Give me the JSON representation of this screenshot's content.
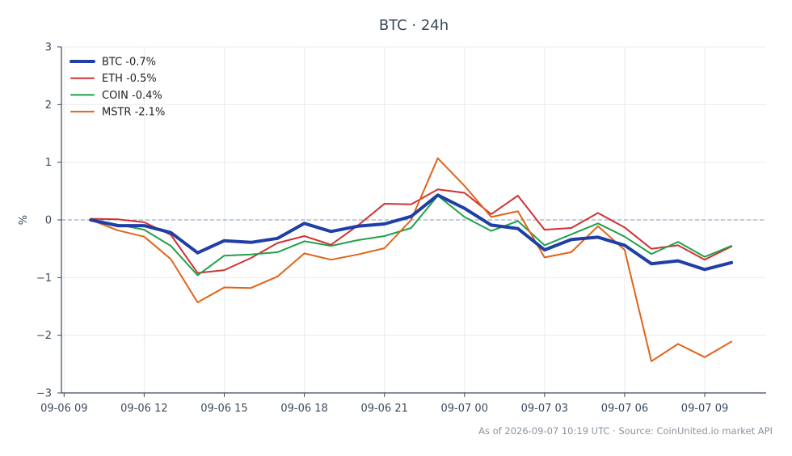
{
  "chart_data": {
    "type": "line",
    "title": "BTC · 24h",
    "ylabel": "%",
    "xlabel": "",
    "ylim": [
      -3,
      3
    ],
    "yticks": [
      3,
      2,
      1,
      0,
      -1,
      -2,
      -3
    ],
    "ytick_labels": [
      "3",
      "2",
      "1",
      "0",
      "−1",
      "−2",
      "−3"
    ],
    "xticks": [
      {
        "label": "09-06 09",
        "hours": 9
      },
      {
        "label": "09-06 12",
        "hours": 12
      },
      {
        "label": "09-06 15",
        "hours": 15
      },
      {
        "label": "09-06 18",
        "hours": 18
      },
      {
        "label": "09-06 21",
        "hours": 21
      },
      {
        "label": "09-07 00",
        "hours": 24
      },
      {
        "label": "09-07 03",
        "hours": 27
      },
      {
        "label": "09-07 06",
        "hours": 30
      },
      {
        "label": "09-07 09",
        "hours": 33
      }
    ],
    "x_hours": [
      10,
      11,
      12,
      13,
      14,
      15,
      16,
      17,
      18,
      19,
      20,
      21,
      22,
      23,
      24,
      25,
      26,
      27,
      28,
      29,
      30,
      31,
      32,
      33,
      34
    ],
    "grid": true,
    "zero_line": true,
    "legend_position": "top-left",
    "series": [
      {
        "name": "BTC -0.7%",
        "color": "#1f3fa6",
        "width": 4,
        "values": [
          0.0,
          -0.1,
          -0.1,
          -0.22,
          -0.57,
          -0.36,
          -0.39,
          -0.32,
          -0.06,
          -0.2,
          -0.11,
          -0.07,
          0.06,
          0.43,
          0.2,
          -0.09,
          -0.15,
          -0.52,
          -0.34,
          -0.3,
          -0.44,
          -0.76,
          -0.71,
          -0.86,
          -0.74
        ]
      },
      {
        "name": "ETH -0.5%",
        "color": "#d03232",
        "width": 2,
        "values": [
          0.02,
          0.01,
          -0.04,
          -0.26,
          -0.92,
          -0.87,
          -0.66,
          -0.4,
          -0.28,
          -0.43,
          -0.1,
          0.28,
          0.27,
          0.53,
          0.47,
          0.1,
          0.42,
          -0.17,
          -0.14,
          0.12,
          -0.13,
          -0.5,
          -0.44,
          -0.69,
          -0.46
        ]
      },
      {
        "name": "COIN -0.4%",
        "color": "#22a04a",
        "width": 2,
        "values": [
          0.01,
          -0.08,
          -0.17,
          -0.45,
          -0.96,
          -0.62,
          -0.6,
          -0.56,
          -0.37,
          -0.45,
          -0.35,
          -0.28,
          -0.14,
          0.42,
          0.05,
          -0.19,
          -0.02,
          -0.44,
          -0.25,
          -0.06,
          -0.29,
          -0.59,
          -0.38,
          -0.64,
          -0.45
        ]
      },
      {
        "name": "MSTR -2.1%",
        "color": "#e06418",
        "width": 2,
        "values": [
          0.0,
          -0.18,
          -0.29,
          -0.68,
          -1.43,
          -1.17,
          -1.18,
          -0.98,
          -0.58,
          -0.69,
          -0.6,
          -0.49,
          0.0,
          1.07,
          0.59,
          0.05,
          0.15,
          -0.65,
          -0.56,
          -0.11,
          -0.52,
          -2.45,
          -2.15,
          -2.38,
          -2.11
        ]
      }
    ]
  },
  "footer": "As of 2026-09-07 10:19 UTC · Source: CoinUnited.io market API",
  "colors": {
    "axis": "#3b4a5a",
    "grid": "#e9ecef",
    "zero_line": "#8a98b0"
  }
}
